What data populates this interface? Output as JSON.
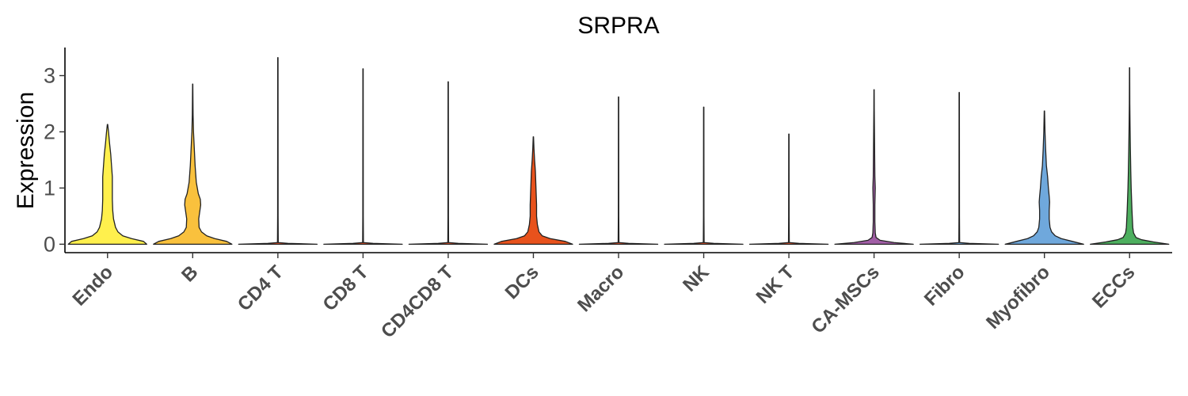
{
  "chart_data": {
    "type": "violin",
    "title": "SRPRA",
    "ylabel": "Expression",
    "xlabel": "",
    "ylim": [
      -0.15,
      3.5
    ],
    "yticks": [
      0,
      1,
      2,
      3
    ],
    "legend": "none",
    "grid": false,
    "categories": [
      "Endo",
      "B",
      "CD4 T",
      "CD8 T",
      "CD4CD8 T",
      "DCs",
      "Macro",
      "NK",
      "NK T",
      "CA-MSCs",
      "Fibro",
      "Myofibro",
      "ECCs"
    ],
    "colors": [
      "#FFF04D",
      "#F9C13D",
      "#E8522A",
      "#E8522A",
      "#E8522A",
      "#E8521C",
      "#E8522A",
      "#E8522A",
      "#E8522A",
      "#A15EA6",
      "#6FA8DC",
      "#6FA8DC",
      "#4DAF5F"
    ],
    "series": [
      {
        "max": 2.13,
        "profile": [
          [
            0,
            0.98
          ],
          [
            0.05,
            0.9
          ],
          [
            0.1,
            0.6
          ],
          [
            0.15,
            0.38
          ],
          [
            0.22,
            0.26
          ],
          [
            0.3,
            0.2
          ],
          [
            0.45,
            0.15
          ],
          [
            0.6,
            0.13
          ],
          [
            0.8,
            0.12
          ],
          [
            1.0,
            0.12
          ],
          [
            1.2,
            0.12
          ],
          [
            1.4,
            0.1
          ],
          [
            1.6,
            0.08
          ],
          [
            1.8,
            0.05
          ],
          [
            2.0,
            0.025
          ],
          [
            2.13,
            0.005
          ]
        ]
      },
      {
        "max": 2.85,
        "profile": [
          [
            0,
            0.98
          ],
          [
            0.05,
            0.85
          ],
          [
            0.1,
            0.55
          ],
          [
            0.15,
            0.35
          ],
          [
            0.22,
            0.22
          ],
          [
            0.3,
            0.16
          ],
          [
            0.45,
            0.15
          ],
          [
            0.6,
            0.18
          ],
          [
            0.7,
            0.2
          ],
          [
            0.8,
            0.19
          ],
          [
            0.9,
            0.14
          ],
          [
            1.1,
            0.09
          ],
          [
            1.4,
            0.06
          ],
          [
            1.7,
            0.04
          ],
          [
            2.0,
            0.02
          ],
          [
            2.3,
            0.01
          ],
          [
            2.6,
            0.006
          ],
          [
            2.85,
            0.003
          ]
        ]
      },
      {
        "max": 3.32,
        "profile": [
          [
            0,
            0.98
          ],
          [
            0.015,
            0.25
          ],
          [
            0.03,
            0.01
          ],
          [
            0.5,
            0.006
          ],
          [
            3.32,
            0.004
          ]
        ]
      },
      {
        "max": 3.12,
        "profile": [
          [
            0,
            0.98
          ],
          [
            0.015,
            0.25
          ],
          [
            0.03,
            0.01
          ],
          [
            0.5,
            0.006
          ],
          [
            3.12,
            0.004
          ]
        ]
      },
      {
        "max": 2.89,
        "profile": [
          [
            0,
            0.98
          ],
          [
            0.015,
            0.25
          ],
          [
            0.03,
            0.01
          ],
          [
            0.5,
            0.006
          ],
          [
            2.89,
            0.004
          ]
        ]
      },
      {
        "max": 1.91,
        "profile": [
          [
            0,
            0.98
          ],
          [
            0.05,
            0.8
          ],
          [
            0.1,
            0.42
          ],
          [
            0.15,
            0.22
          ],
          [
            0.22,
            0.14
          ],
          [
            0.35,
            0.1
          ],
          [
            0.5,
            0.08
          ],
          [
            0.7,
            0.08
          ],
          [
            0.9,
            0.07
          ],
          [
            1.1,
            0.06
          ],
          [
            1.3,
            0.05
          ],
          [
            1.5,
            0.03
          ],
          [
            1.7,
            0.015
          ],
          [
            1.91,
            0.004
          ]
        ]
      },
      {
        "max": 2.62,
        "profile": [
          [
            0,
            0.98
          ],
          [
            0.015,
            0.25
          ],
          [
            0.03,
            0.01
          ],
          [
            0.5,
            0.006
          ],
          [
            2.62,
            0.004
          ]
        ]
      },
      {
        "max": 2.44,
        "profile": [
          [
            0,
            0.98
          ],
          [
            0.015,
            0.25
          ],
          [
            0.03,
            0.01
          ],
          [
            0.5,
            0.006
          ],
          [
            2.44,
            0.004
          ]
        ]
      },
      {
        "max": 1.96,
        "profile": [
          [
            0,
            0.98
          ],
          [
            0.015,
            0.25
          ],
          [
            0.03,
            0.01
          ],
          [
            0.5,
            0.006
          ],
          [
            1.96,
            0.004
          ]
        ]
      },
      {
        "max": 2.75,
        "profile": [
          [
            0,
            0.98
          ],
          [
            0.03,
            0.5
          ],
          [
            0.07,
            0.15
          ],
          [
            0.12,
            0.05
          ],
          [
            0.2,
            0.03
          ],
          [
            0.4,
            0.02
          ],
          [
            0.7,
            0.02
          ],
          [
            1.0,
            0.03
          ],
          [
            1.2,
            0.02
          ],
          [
            1.6,
            0.015
          ],
          [
            2.0,
            0.01
          ],
          [
            2.4,
            0.005
          ],
          [
            2.75,
            0.003
          ]
        ]
      },
      {
        "max": 2.7,
        "profile": [
          [
            0,
            0.98
          ],
          [
            0.015,
            0.25
          ],
          [
            0.03,
            0.01
          ],
          [
            0.5,
            0.006
          ],
          [
            2.7,
            0.004
          ]
        ]
      },
      {
        "max": 2.37,
        "profile": [
          [
            0,
            0.98
          ],
          [
            0.05,
            0.7
          ],
          [
            0.1,
            0.42
          ],
          [
            0.15,
            0.27
          ],
          [
            0.22,
            0.18
          ],
          [
            0.3,
            0.14
          ],
          [
            0.45,
            0.12
          ],
          [
            0.6,
            0.12
          ],
          [
            0.75,
            0.13
          ],
          [
            0.85,
            0.12
          ],
          [
            1.0,
            0.1
          ],
          [
            1.2,
            0.08
          ],
          [
            1.4,
            0.05
          ],
          [
            1.7,
            0.03
          ],
          [
            2.0,
            0.015
          ],
          [
            2.37,
            0.004
          ]
        ]
      },
      {
        "max": 3.14,
        "profile": [
          [
            0,
            0.98
          ],
          [
            0.04,
            0.6
          ],
          [
            0.08,
            0.3
          ],
          [
            0.12,
            0.16
          ],
          [
            0.2,
            0.1
          ],
          [
            0.3,
            0.08
          ],
          [
            0.45,
            0.07
          ],
          [
            0.6,
            0.06
          ],
          [
            0.8,
            0.05
          ],
          [
            1.0,
            0.04
          ],
          [
            1.3,
            0.03
          ],
          [
            1.7,
            0.02
          ],
          [
            2.1,
            0.012
          ],
          [
            2.5,
            0.006
          ],
          [
            3.14,
            0.003
          ]
        ]
      }
    ]
  }
}
